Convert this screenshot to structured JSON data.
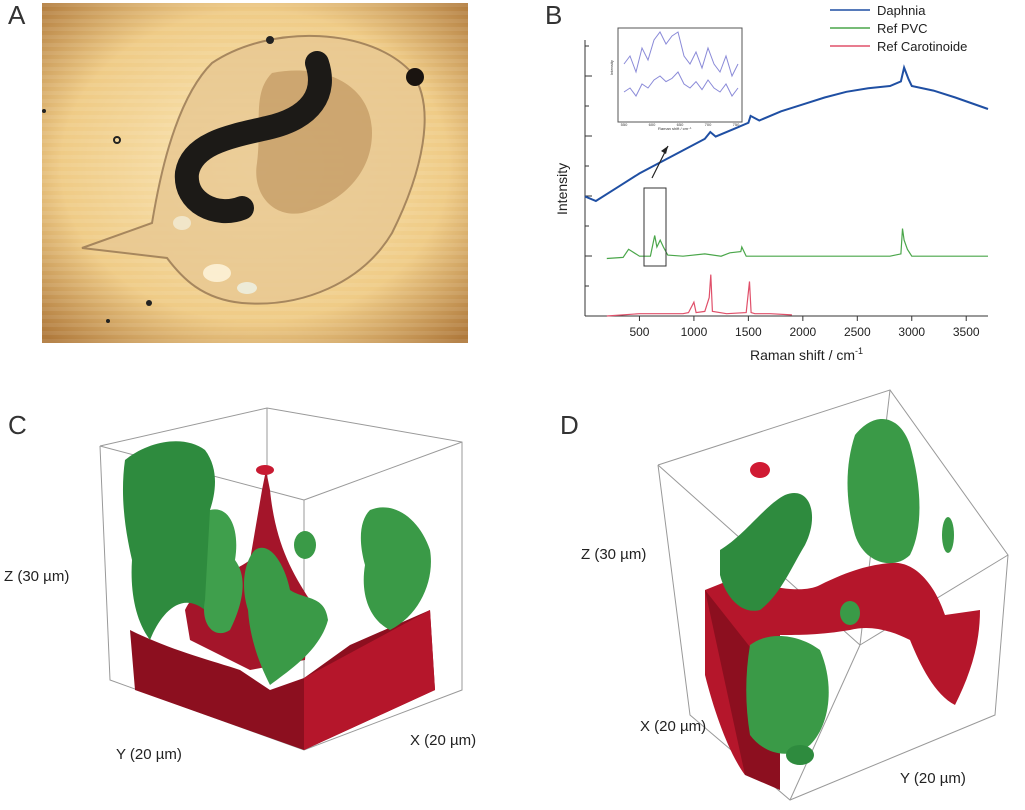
{
  "panels": {
    "a": {
      "letter": "A"
    },
    "b": {
      "letter": "B"
    },
    "c": {
      "letter": "C",
      "z_label": "Z (30 µm)",
      "y_label": "Y (20 µm)",
      "x_label": "X (20 µm)"
    },
    "d": {
      "letter": "D",
      "z_label": "Z (30 µm)",
      "x_label": "X (20 µm)",
      "y_label": "Y (20 µm)"
    }
  },
  "chart_data": {
    "type": "line",
    "xlabel": "Raman shift / cm",
    "xlabel_superscript": "-1",
    "ylabel": "Intensity",
    "xlim": [
      0,
      3700
    ],
    "xticks": [
      500,
      1000,
      1500,
      2000,
      2500,
      3000,
      3500
    ],
    "legend_position": "top-right",
    "series": [
      {
        "name": "Daphnia",
        "color": "#1f4fa3",
        "x": [
          0,
          100,
          300,
          500,
          700,
          900,
          1100,
          1150,
          1200,
          1400,
          1500,
          1520,
          1600,
          1800,
          2000,
          2200,
          2400,
          2600,
          2800,
          2900,
          2930,
          2970,
          3000,
          3200,
          3400,
          3700
        ],
        "y": [
          0.52,
          0.5,
          0.56,
          0.62,
          0.67,
          0.72,
          0.77,
          0.8,
          0.78,
          0.82,
          0.84,
          0.87,
          0.85,
          0.89,
          0.92,
          0.95,
          0.975,
          0.99,
          1.0,
          1.02,
          1.08,
          1.03,
          1.0,
          0.98,
          0.95,
          0.9
        ]
      },
      {
        "name": "Ref PVC",
        "color": "#4aa64a",
        "x": [
          200,
          350,
          400,
          500,
          600,
          640,
          660,
          690,
          720,
          760,
          900,
          1100,
          1250,
          1330,
          1430,
          1440,
          1480,
          2000,
          2800,
          2900,
          2915,
          2930,
          2960,
          3000,
          3700
        ],
        "y": [
          0.25,
          0.255,
          0.29,
          0.26,
          0.26,
          0.35,
          0.3,
          0.33,
          0.3,
          0.265,
          0.26,
          0.27,
          0.26,
          0.275,
          0.28,
          0.3,
          0.26,
          0.26,
          0.26,
          0.27,
          0.38,
          0.33,
          0.29,
          0.26,
          0.26
        ]
      },
      {
        "name": "Ref Carotinoide",
        "color": "#e0506a",
        "x": [
          200,
          500,
          900,
          950,
          1000,
          1020,
          1100,
          1140,
          1155,
          1170,
          1300,
          1480,
          1510,
          1525,
          1560,
          1700,
          1900
        ],
        "y": [
          0.0,
          0.01,
          0.01,
          0.015,
          0.06,
          0.015,
          0.02,
          0.08,
          0.18,
          0.02,
          0.01,
          0.015,
          0.15,
          0.015,
          0.01,
          0.01,
          0.005
        ]
      }
    ],
    "inset": {
      "xlabel": "Raman shift / cm⁻¹",
      "ylabel": "Intensity",
      "xlim": [
        550,
        750
      ],
      "xticks": [
        550,
        600,
        650,
        700,
        750
      ]
    }
  }
}
